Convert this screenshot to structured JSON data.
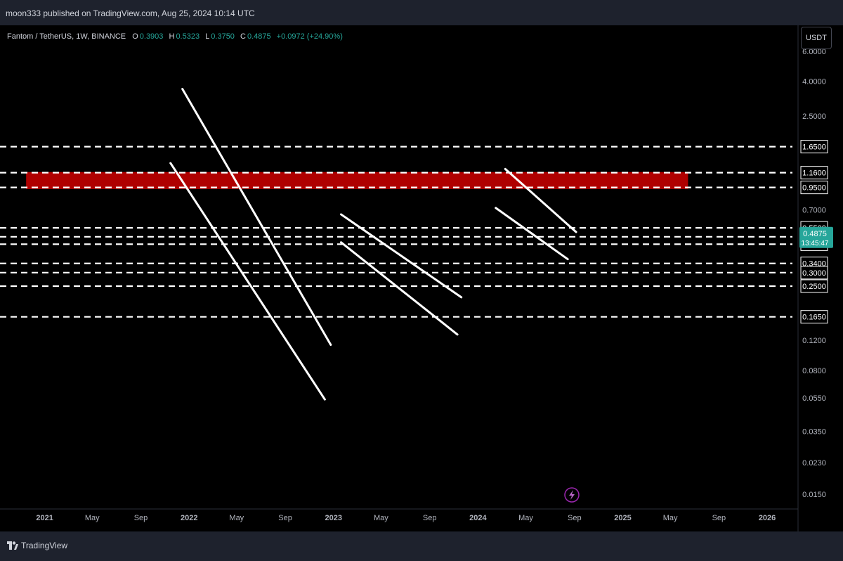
{
  "publisher_line": "moon333 published on TradingView.com, Aug 25, 2024 10:14 UTC",
  "legend": {
    "symbol": "Fantom / TetherUS, 1W, BINANCE",
    "o_label": "O",
    "o_value": "0.3903",
    "h_label": "H",
    "h_value": "0.5323",
    "l_label": "L",
    "l_value": "0.3750",
    "c_label": "C",
    "c_value": "0.4875",
    "change": "+0.0972 (+24.90%)"
  },
  "currency_button": "USDT",
  "footer_brand": "TradingView",
  "colors": {
    "up": "#26a69a",
    "down": "#ef5350",
    "zone": "#e00000",
    "level_line": "#ffffff",
    "trendline": "#ffffff",
    "background": "#000000"
  },
  "chart_data": {
    "type": "candlestick",
    "symbol": "Fantom / TetherUS",
    "interval": "1W",
    "exchange": "BINANCE",
    "y_scale": "log",
    "ylim": [
      0.0125,
      8.2
    ],
    "x_range": [
      "2020-09-10",
      "2026-03-20"
    ],
    "x_tick_labels": [
      {
        "date": "2021-01-01",
        "label": "2021",
        "bold": true
      },
      {
        "date": "2021-05-01",
        "label": "May"
      },
      {
        "date": "2021-09-01",
        "label": "Sep"
      },
      {
        "date": "2022-01-01",
        "label": "2022",
        "bold": true
      },
      {
        "date": "2022-05-01",
        "label": "May"
      },
      {
        "date": "2022-09-01",
        "label": "Sep"
      },
      {
        "date": "2023-01-01",
        "label": "2023",
        "bold": true
      },
      {
        "date": "2023-05-01",
        "label": "May"
      },
      {
        "date": "2023-09-01",
        "label": "Sep"
      },
      {
        "date": "2024-01-01",
        "label": "2024",
        "bold": true
      },
      {
        "date": "2024-05-01",
        "label": "May"
      },
      {
        "date": "2024-09-01",
        "label": "Sep"
      },
      {
        "date": "2025-01-01",
        "label": "2025",
        "bold": true
      },
      {
        "date": "2025-05-01",
        "label": "May"
      },
      {
        "date": "2025-09-01",
        "label": "Sep"
      },
      {
        "date": "2026-01-01",
        "label": "2026",
        "bold": true
      }
    ],
    "y_tick_labels": [
      "6.0000",
      "4.0000",
      "2.5000",
      "0.7000",
      "0.1200",
      "0.0800",
      "0.0550",
      "0.0350",
      "0.0230",
      "0.0150"
    ],
    "horizontal_levels": [
      {
        "value": 1.65,
        "label": "1.6500"
      },
      {
        "value": 1.16,
        "label": "1.1600"
      },
      {
        "value": 0.95,
        "label": "0.9500"
      },
      {
        "value": 0.55,
        "label": "0.5500"
      },
      {
        "value": 0.4875,
        "label": ""
      },
      {
        "value": 0.4408,
        "label": "0.4408"
      },
      {
        "value": 0.34,
        "label": "0.3400"
      },
      {
        "value": 0.3,
        "label": "0.3000"
      },
      {
        "value": 0.25,
        "label": "0.2500"
      },
      {
        "value": 0.165,
        "label": "0.1650"
      }
    ],
    "current_price": {
      "value": 0.4875,
      "label": "0.4875",
      "countdown": "13:45:47"
    },
    "resistance_zone": {
      "from": "2020-11-15",
      "to": "2025-06-15",
      "low": 0.93,
      "high": 1.17
    },
    "trendlines": [
      {
        "x1": "2021-11-15",
        "y1": 1.32,
        "x2": "2022-12-10",
        "y2": 0.054
      },
      {
        "x1": "2021-12-15",
        "y1": 3.6,
        "x2": "2022-12-25",
        "y2": 0.113
      },
      {
        "x1": "2023-01-20",
        "y1": 0.452,
        "x2": "2023-11-10",
        "y2": 0.13
      },
      {
        "x1": "2023-01-20",
        "y1": 0.66,
        "x2": "2023-11-20",
        "y2": 0.215
      },
      {
        "x1": "2024-02-15",
        "y1": 0.72,
        "x2": "2024-08-15",
        "y2": 0.36
      },
      {
        "x1": "2024-03-10",
        "y1": 1.22,
        "x2": "2024-09-05",
        "y2": 0.52
      }
    ],
    "trendlines_bounded_by_levels": false,
    "candles": []
  }
}
